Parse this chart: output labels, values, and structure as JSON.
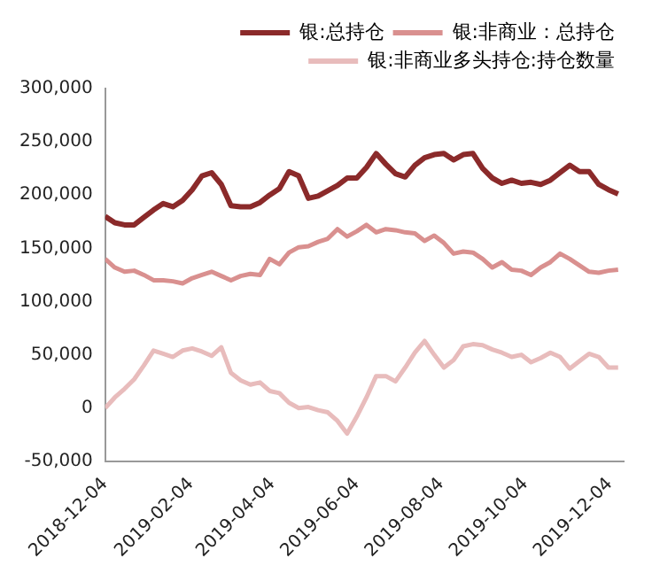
{
  "chart_data": {
    "type": "line",
    "legend": "top",
    "marker": "none",
    "x": [
      "2018-12-04",
      "2018-12-11",
      "2018-12-18",
      "2018-12-25",
      "2019-01-01",
      "2019-01-08",
      "2019-01-15",
      "2019-01-22",
      "2019-01-29",
      "2019-02-05",
      "2019-02-12",
      "2019-02-19",
      "2019-02-26",
      "2019-03-05",
      "2019-03-12",
      "2019-03-19",
      "2019-03-26",
      "2019-04-02",
      "2019-04-09",
      "2019-04-16",
      "2019-04-23",
      "2019-04-30",
      "2019-05-07",
      "2019-05-14",
      "2019-05-21",
      "2019-05-28",
      "2019-06-04",
      "2019-06-11",
      "2019-06-18",
      "2019-06-25",
      "2019-07-02",
      "2019-07-09",
      "2019-07-16",
      "2019-07-23",
      "2019-07-30",
      "2019-08-06",
      "2019-08-13",
      "2019-08-20",
      "2019-08-27",
      "2019-09-03",
      "2019-09-10",
      "2019-09-17",
      "2019-09-24",
      "2019-10-01",
      "2019-10-08",
      "2019-10-15",
      "2019-10-22",
      "2019-10-29",
      "2019-11-05",
      "2019-11-12",
      "2019-11-19",
      "2019-11-26",
      "2019-12-03",
      "2019-12-10"
    ],
    "series": [
      {
        "name": "银:总持仓",
        "color": "#8b2a2a",
        "values": [
          180000,
          174000,
          172000,
          172000,
          179000,
          186000,
          192000,
          189000,
          195000,
          205000,
          218000,
          221000,
          210000,
          190000,
          189000,
          189000,
          193000,
          200000,
          206000,
          222000,
          218000,
          197000,
          199000,
          204000,
          209000,
          216000,
          216000,
          226000,
          239000,
          229000,
          220000,
          217000,
          228000,
          235000,
          238000,
          239000,
          233000,
          238000,
          239000,
          225000,
          216000,
          211000,
          214000,
          211000,
          212000,
          210000,
          214000,
          221000,
          228000,
          222000,
          222000,
          210000,
          205000,
          201000
        ]
      },
      {
        "name": "银:非商业：总持仓",
        "color": "#d9908f",
        "values": [
          140000,
          132000,
          128000,
          129000,
          125000,
          120000,
          120000,
          119000,
          117000,
          122000,
          125000,
          128000,
          124000,
          120000,
          124000,
          126000,
          125000,
          140000,
          135000,
          146000,
          151000,
          152000,
          156000,
          159000,
          168000,
          161000,
          166000,
          172000,
          165000,
          168000,
          167000,
          165000,
          164000,
          157000,
          162000,
          155000,
          145000,
          147000,
          146000,
          140000,
          132000,
          137000,
          130000,
          129000,
          125000,
          132000,
          137000,
          145000,
          140000,
          134000,
          128000,
          127000,
          129000,
          130000
        ]
      },
      {
        "name": "银:非商业多头持仓:持仓数量",
        "color": "#e8bcbc",
        "values": [
          0,
          10000,
          18000,
          27000,
          40000,
          54000,
          51000,
          48000,
          54000,
          56000,
          53000,
          49000,
          57000,
          33000,
          26000,
          22000,
          24000,
          16000,
          14000,
          5000,
          0,
          1000,
          -2000,
          -4000,
          -12000,
          -24000,
          -8000,
          10000,
          30000,
          30000,
          25000,
          38000,
          52000,
          63000,
          50000,
          38000,
          45000,
          58000,
          60000,
          59000,
          55000,
          52000,
          48000,
          50000,
          43000,
          47000,
          52000,
          48000,
          37000,
          44000,
          51000,
          48000,
          38000,
          38000
        ]
      }
    ],
    "xlim": [
      "2018-12-04",
      "2019-12-14"
    ],
    "xticks": [
      "2018-12-04",
      "2019-02-04",
      "2019-04-04",
      "2019-06-04",
      "2019-08-04",
      "2019-10-04",
      "2019-12-04"
    ],
    "ylim": [
      -50000,
      300000
    ],
    "yticks": [
      {
        "value": -50000,
        "label": "-50,000"
      },
      {
        "value": 0,
        "label": "0"
      },
      {
        "value": 50000,
        "label": "50,000"
      },
      {
        "value": 100000,
        "label": "100,000"
      },
      {
        "value": 150000,
        "label": "150,000"
      },
      {
        "value": 200000,
        "label": "200,000"
      },
      {
        "value": 250000,
        "label": "250,000"
      },
      {
        "value": 300000,
        "label": "300,000"
      }
    ]
  }
}
